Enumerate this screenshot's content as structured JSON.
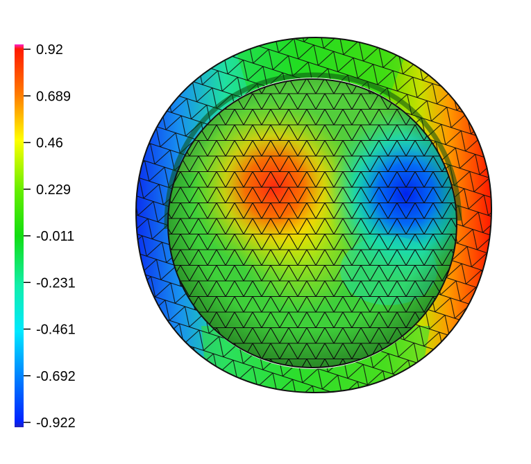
{
  "colorbar": {
    "ticks": [
      "0.92",
      "0.689",
      "0.46",
      "0.229",
      "-0.011",
      "-0.231",
      "-0.461",
      "-0.692",
      "-0.922"
    ],
    "gradient_stops": [
      "#ff22cc",
      "#ff1a00",
      "#ff7a00",
      "#ffff00",
      "#66ee00",
      "#11dd11",
      "#11eeaa",
      "#00e8ff",
      "#0080ff",
      "#0022ff",
      "#2222bb"
    ]
  },
  "mesh_colors": {
    "outline": "#111111",
    "sphere_left": "#7fd12a",
    "hot_spot": "#ff3311",
    "cold_spot": "#0033ee",
    "ring_left": "#1144ee",
    "ring_right": "#ff2200",
    "ring_top": "#22dd22"
  }
}
